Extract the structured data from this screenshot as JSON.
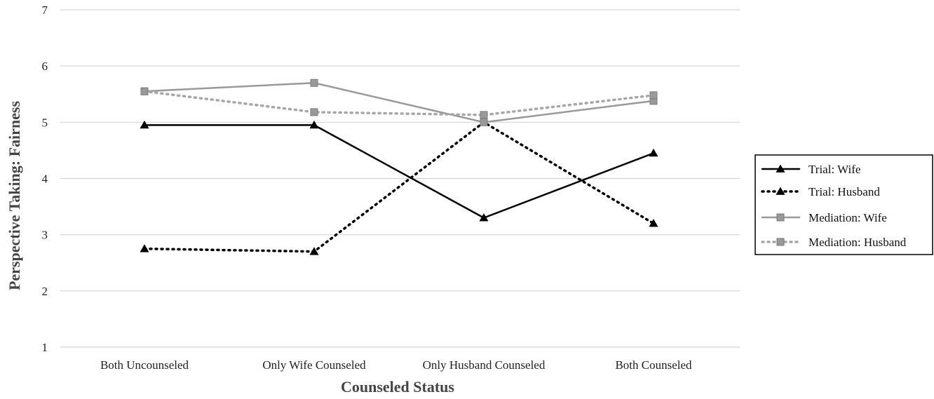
{
  "chart_data": {
    "type": "line",
    "title": "",
    "xlabel": "Counseled Status",
    "ylabel": "Perspective Taking: Fairness",
    "ylim": [
      1,
      7
    ],
    "yticks": [
      "1",
      "2",
      "3",
      "4",
      "5",
      "6",
      "7"
    ],
    "grid": "horizontal",
    "legend_position": "right",
    "categories": [
      "Both Uncounseled",
      "Only Wife Counseled",
      "Only Husband Counseled",
      "Both Counseled"
    ],
    "series": [
      {
        "name": "Trial: Wife",
        "values": [
          4.95,
          4.95,
          3.3,
          4.45
        ],
        "color": "#000000",
        "dash": "solid",
        "marker": "triangle"
      },
      {
        "name": "Trial: Husband",
        "values": [
          2.75,
          2.7,
          5.0,
          3.2
        ],
        "color": "#000000",
        "dash": "dotted",
        "marker": "triangle"
      },
      {
        "name": "Mediation: Wife",
        "values": [
          5.55,
          5.7,
          5.0,
          5.38
        ],
        "color": "#999999",
        "dash": "solid",
        "marker": "square"
      },
      {
        "name": "Mediation: Husband",
        "values": [
          5.55,
          5.18,
          5.13,
          5.48
        ],
        "color": "#a6a6a6",
        "dash": "dotted",
        "marker": "square"
      }
    ]
  }
}
